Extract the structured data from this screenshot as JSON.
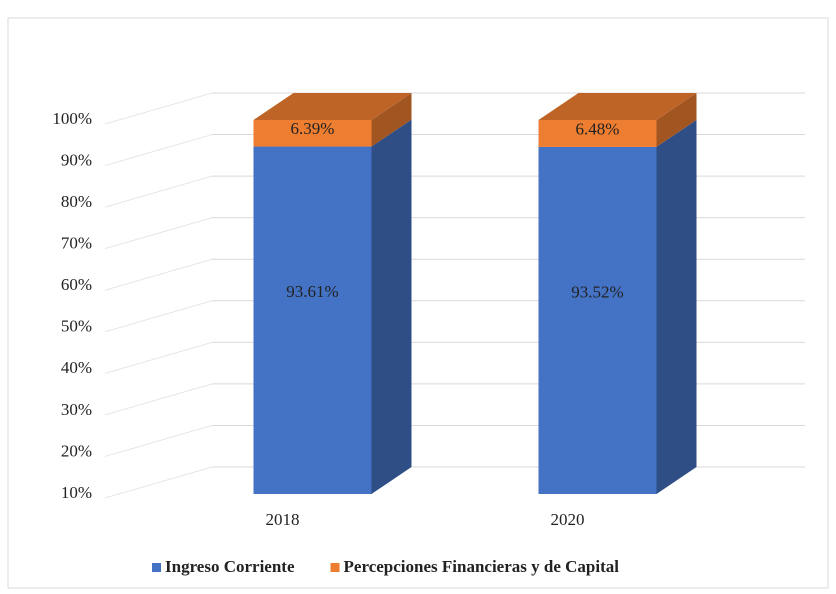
{
  "chart_data": {
    "type": "bar3d_stacked",
    "categories": [
      "2018",
      "2020"
    ],
    "series": [
      {
        "name": "Ingreso Corriente",
        "color": "#4472c4",
        "values": [
          93.61,
          93.52
        ],
        "value_labels": [
          "93.61%",
          "93.52%"
        ]
      },
      {
        "name": "Percepciones Financieras y de Capital",
        "color": "#ed7d31",
        "values": [
          6.39,
          6.48
        ],
        "value_labels": [
          "6.39%",
          "6.48%"
        ]
      }
    ],
    "ylim": [
      10,
      100
    ],
    "yticks": [
      {
        "value": 10,
        "label": "10%"
      },
      {
        "value": 20,
        "label": "20%"
      },
      {
        "value": 30,
        "label": "30%"
      },
      {
        "value": 40,
        "label": "40%"
      },
      {
        "value": 50,
        "label": "50%"
      },
      {
        "value": 60,
        "label": "60%"
      },
      {
        "value": 70,
        "label": "70%"
      },
      {
        "value": 80,
        "label": "80%"
      },
      {
        "value": 90,
        "label": "90%"
      },
      {
        "value": 100,
        "label": "100%"
      }
    ],
    "grid": true,
    "legend": "bottom"
  }
}
